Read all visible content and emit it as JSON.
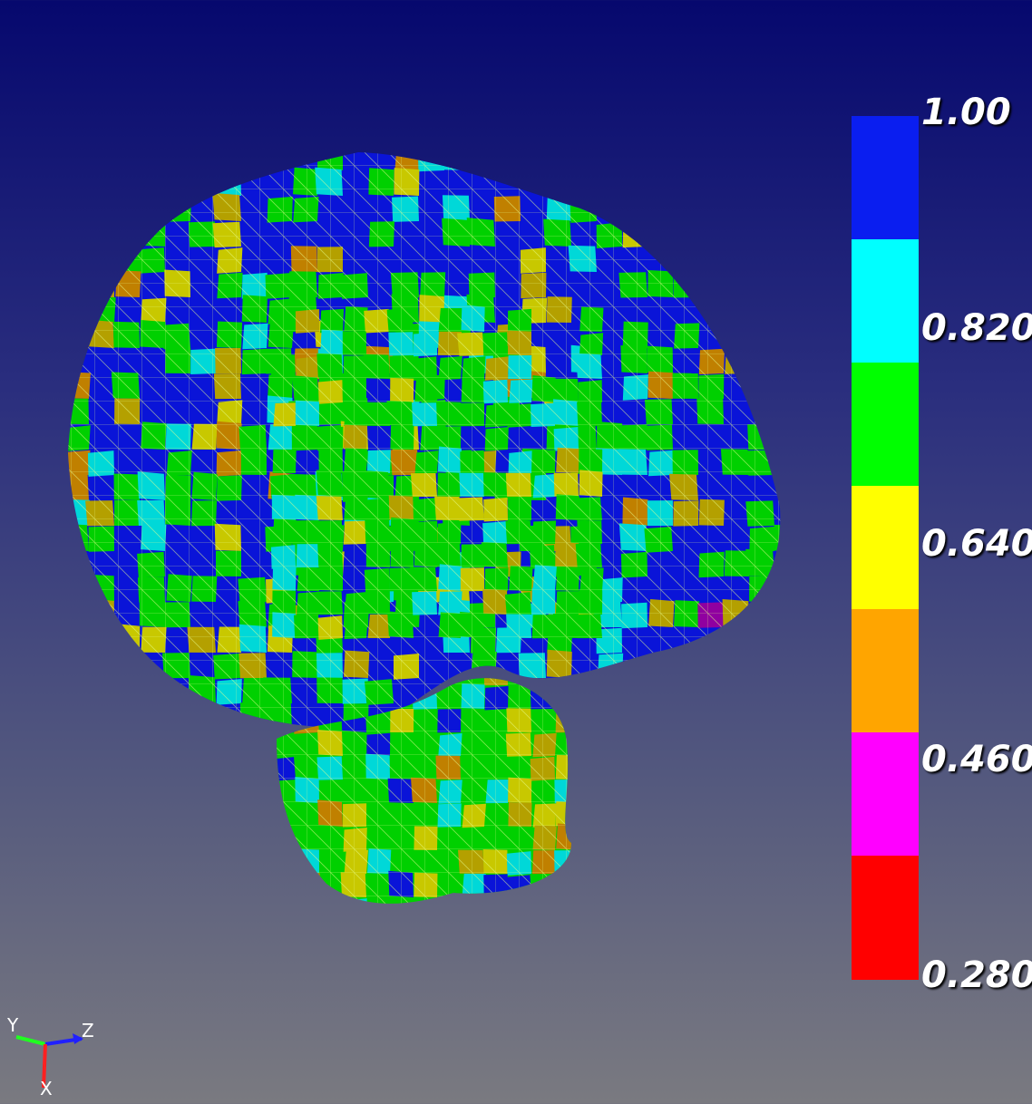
{
  "colorbar": {
    "labels": [
      "1.00",
      "0.820",
      "0.640",
      "0.460",
      "0.280"
    ],
    "segments": [
      {
        "color": "#0a1ef0"
      },
      {
        "color": "#00ffff"
      },
      {
        "color": "#00ff00"
      },
      {
        "color": "#ffff00"
      },
      {
        "color": "#ffa500"
      },
      {
        "color": "#ff00ff"
      },
      {
        "color": "#ff0000"
      }
    ]
  },
  "axes": {
    "y_label": "Y",
    "z_label": "Z",
    "x_label": "X",
    "colors": {
      "x": "#ff2020",
      "y": "#20ff20",
      "z": "#2020ff"
    }
  },
  "mesh": {
    "colors": {
      "blue": "#0a14d8",
      "cyan": "#00d8d8",
      "green": "#00d000",
      "yellow": "#c8c800",
      "gold": "#b4a000",
      "orange": "#c08000",
      "purple": "#9000a0"
    }
  }
}
